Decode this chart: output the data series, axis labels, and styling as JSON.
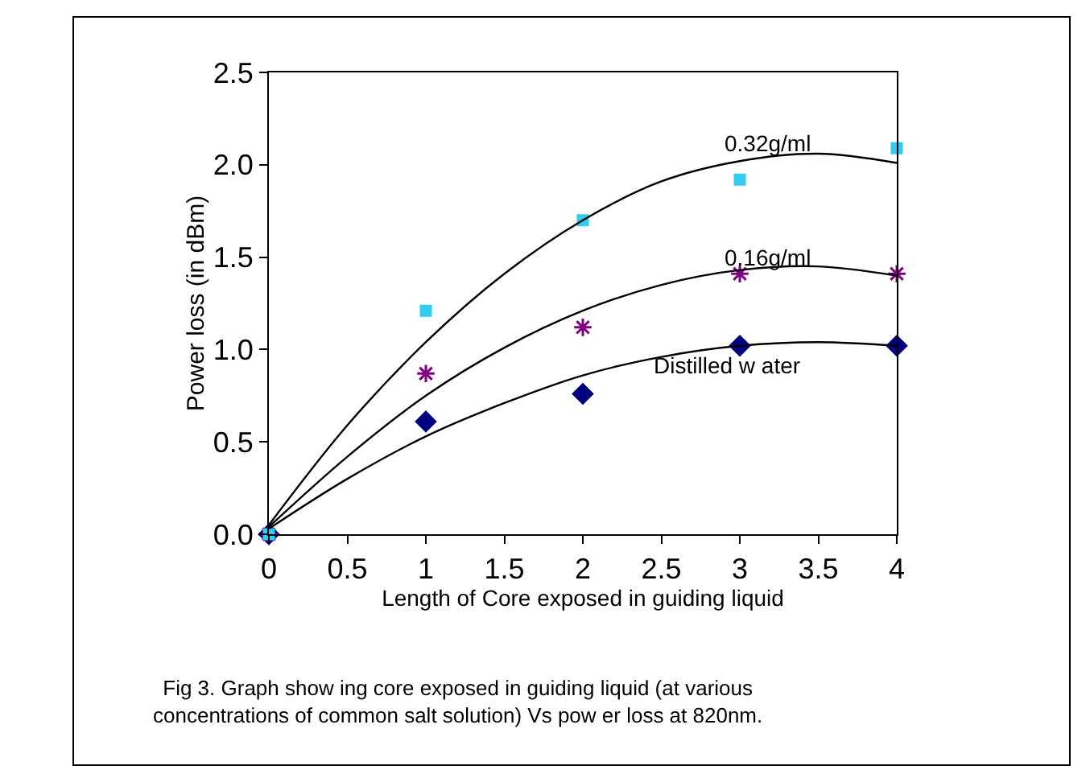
{
  "chart_data": {
    "type": "scatter",
    "xlabel": "Length of Core exposed in guiding liquid",
    "ylabel": "Power loss (in dBm)",
    "xlim": [
      0,
      4
    ],
    "xticks": [
      0,
      0.5,
      1,
      1.5,
      2,
      2.5,
      3,
      3.5,
      4
    ],
    "ylim": [
      0,
      2.5
    ],
    "yticks": [
      {
        "value": 0,
        "label": "0.0"
      },
      0.5,
      {
        "value": 1,
        "label": "1.0"
      },
      1.5,
      {
        "value": 2,
        "label": "2.0"
      },
      2.5
    ],
    "grid": false,
    "x": [
      0,
      1,
      2,
      3,
      4
    ],
    "series": [
      {
        "color": "#000080",
        "marker": "diamond",
        "values": [
          0,
          0.61,
          0.76,
          1.02,
          1.02
        ]
      },
      {
        "color": "#800080",
        "marker": "cross",
        "values": [
          0,
          0.87,
          1.12,
          1.41,
          1.41
        ]
      },
      {
        "color": "#33ccee",
        "marker": "square",
        "values": [
          0,
          1.21,
          1.7,
          1.92,
          2.09
        ]
      },
      {
        "type": "line",
        "color": "#000000",
        "marker": "none",
        "line_style": "solid",
        "x": [
          0,
          0.5,
          1,
          1.5,
          2,
          2.5,
          3,
          3.5,
          4
        ],
        "values": [
          0.03,
          0.3,
          0.53,
          0.71,
          0.86,
          0.96,
          1.02,
          1.04,
          1.02
        ]
      },
      {
        "type": "line",
        "color": "#000000",
        "marker": "none",
        "line_style": "solid",
        "x": [
          0,
          0.5,
          1,
          1.5,
          2,
          2.5,
          3,
          3.5,
          4
        ],
        "values": [
          0.04,
          0.42,
          0.75,
          1.01,
          1.21,
          1.35,
          1.43,
          1.45,
          1.4
        ]
      },
      {
        "type": "line",
        "color": "#000000",
        "marker": "none",
        "line_style": "solid",
        "x": [
          0,
          0.5,
          1,
          1.5,
          2,
          2.5,
          3,
          3.5,
          4
        ],
        "values": [
          0.05,
          0.59,
          1.04,
          1.41,
          1.7,
          1.91,
          2.02,
          2.06,
          2.01
        ]
      }
    ],
    "annotations": [
      "0.32g/ml",
      "0.16g/ml",
      "Distilled w ater",
      "Fig 3. Graph show ing core exposed in guiding liquid (at various\nconcentrations of common salt solution) Vs pow er loss at 820nm."
    ]
  }
}
